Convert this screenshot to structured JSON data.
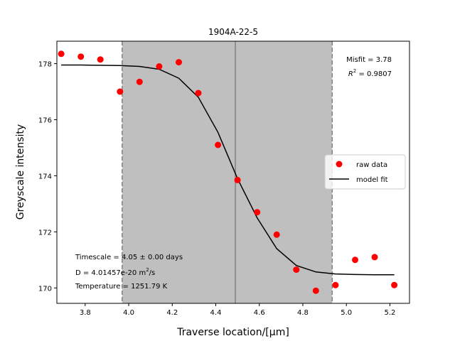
{
  "chart_data": {
    "type": "scatter",
    "title": "1904A-22-5",
    "xlabel": "Traverse location/[",
    "xlabel_unit": "μm",
    "xlabel_end": "]",
    "ylabel": "Greyscale intensity",
    "xlim": [
      3.67,
      5.29
    ],
    "ylim": [
      169.45,
      178.8
    ],
    "xticks": [
      3.8,
      4.0,
      4.2,
      4.4,
      4.6,
      4.8,
      5.0,
      5.2
    ],
    "xtick_labels": [
      "3.8",
      "4.0",
      "4.2",
      "4.4",
      "4.6",
      "4.8",
      "5.0",
      "5.2"
    ],
    "yticks": [
      170,
      172,
      174,
      176,
      178
    ],
    "ytick_labels": [
      "170",
      "172",
      "174",
      "176",
      "178"
    ],
    "shaded_region": [
      3.97,
      4.935
    ],
    "center_line": 4.49,
    "series": [
      {
        "name": "raw data",
        "kind": "scatter",
        "color": "#ff0000",
        "x": [
          3.69,
          3.78,
          3.87,
          3.96,
          4.05,
          4.14,
          4.23,
          4.32,
          4.41,
          4.5,
          4.59,
          4.68,
          4.77,
          4.86,
          4.95,
          5.04,
          5.13,
          5.22
        ],
        "y": [
          178.35,
          178.25,
          178.15,
          177.0,
          177.35,
          177.9,
          178.05,
          176.95,
          175.1,
          173.85,
          172.7,
          171.9,
          170.65,
          169.9,
          170.1,
          171.0,
          171.1,
          170.1
        ]
      },
      {
        "name": "model fit",
        "kind": "line",
        "color": "#000000",
        "x": [
          3.69,
          3.78,
          3.87,
          3.96,
          4.05,
          4.14,
          4.23,
          4.32,
          4.41,
          4.5,
          4.59,
          4.68,
          4.77,
          4.86,
          4.95,
          5.04,
          5.13,
          5.22
        ],
        "y": [
          177.95,
          177.95,
          177.94,
          177.93,
          177.9,
          177.8,
          177.48,
          176.8,
          175.55,
          173.9,
          172.5,
          171.4,
          170.8,
          170.57,
          170.5,
          170.48,
          170.47,
          170.47
        ]
      }
    ],
    "legend": {
      "placement": "center-right",
      "entries": [
        "raw data",
        "model fit"
      ]
    },
    "annotations": {
      "misfit": "Misfit = 3.78",
      "r2_prefix": "R",
      "r2_sup": "2",
      "r2_value": " = 0.9807",
      "timescale": "Timescale = 4.05 ± 0.00 days",
      "diffusivity_prefix": "D = 4.01457e-20 m",
      "diffusivity_sup": "2",
      "diffusivity_suffix": "/s",
      "temperature": "Temperature = 1251.79 K"
    },
    "colors": {
      "shade": "#bfbfbf",
      "boundary": "#808080",
      "center": "#808080"
    }
  }
}
